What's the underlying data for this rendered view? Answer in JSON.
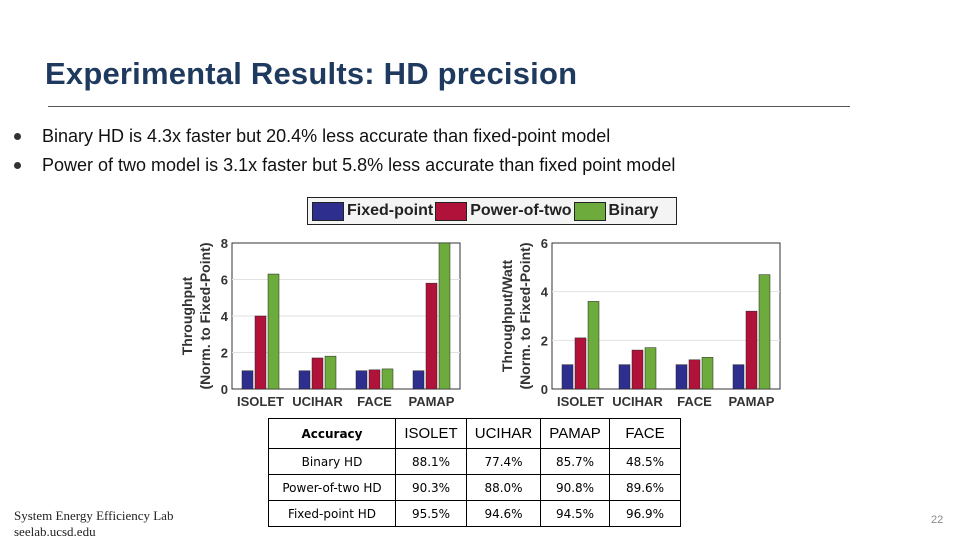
{
  "slide": {
    "title": "Experimental Results: HD precision",
    "bullets": [
      "Binary HD is 4.3x faster but 20.4% less accurate than fixed-point model",
      "Power of two model is 3.1x faster but 5.8% less accurate than fixed point model"
    ],
    "footer_line1": "System Energy Efficiency Lab",
    "footer_line2": "seelab.ucsd.edu",
    "page_number": "22"
  },
  "legend": [
    {
      "name": "Fixed-point",
      "color": "#2e2e8f"
    },
    {
      "name": "Power-of-two",
      "color": "#b0123a"
    },
    {
      "name": "Binary",
      "color": "#6cab3c"
    }
  ],
  "chart_data": [
    {
      "type": "bar",
      "ylabel_line1": "Throughput",
      "ylabel_line2": "(Norm. to Fixed-Point)",
      "categories": [
        "ISOLET",
        "UCIHAR",
        "FACE",
        "PAMAP"
      ],
      "ylim": [
        0,
        8
      ],
      "yticks": [
        "0",
        "2",
        "4",
        "6",
        "8"
      ],
      "series": [
        {
          "name": "Fixed-point",
          "values": [
            1.0,
            1.0,
            1.0,
            1.0
          ]
        },
        {
          "name": "Power-of-two",
          "values": [
            4.0,
            1.7,
            1.05,
            5.8
          ]
        },
        {
          "name": "Binary",
          "values": [
            6.3,
            1.8,
            1.1,
            8.0
          ]
        }
      ]
    },
    {
      "type": "bar",
      "ylabel_line1": "Throughput/Watt",
      "ylabel_line2": "(Norm. to Fixed-Point)",
      "categories": [
        "ISOLET",
        "UCIHAR",
        "FACE",
        "PAMAP"
      ],
      "ylim": [
        0,
        6
      ],
      "yticks": [
        "0",
        "2",
        "4",
        "6"
      ],
      "series": [
        {
          "name": "Fixed-point",
          "values": [
            1.0,
            1.0,
            1.0,
            1.0
          ]
        },
        {
          "name": "Power-of-two",
          "values": [
            2.1,
            1.6,
            1.2,
            3.2
          ]
        },
        {
          "name": "Binary",
          "values": [
            3.6,
            1.7,
            1.3,
            4.7
          ]
        }
      ]
    },
    {
      "type": "table",
      "corner": "Accuracy",
      "columns": [
        "ISOLET",
        "UCIHAR",
        "PAMAP",
        "FACE"
      ],
      "rows": [
        {
          "label": "Binary HD",
          "values": [
            "88.1%",
            "77.4%",
            "85.7%",
            "48.5%"
          ]
        },
        {
          "label": "Power-of-two HD",
          "values": [
            "90.3%",
            "88.0%",
            "90.8%",
            "89.6%"
          ]
        },
        {
          "label": "Fixed-point HD",
          "values": [
            "95.5%",
            "94.6%",
            "94.5%",
            "96.9%"
          ]
        }
      ]
    }
  ]
}
